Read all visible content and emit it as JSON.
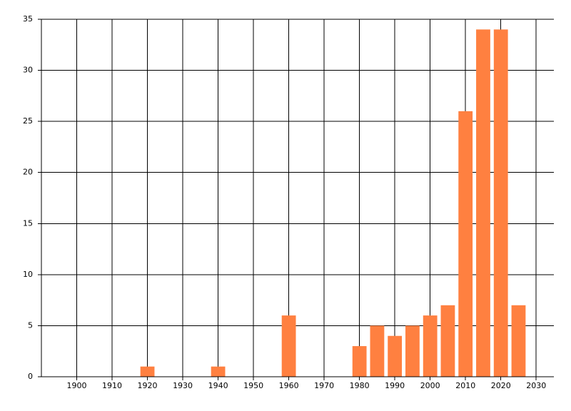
{
  "chart_data": {
    "type": "bar",
    "x": [
      1920,
      1940,
      1960,
      1980,
      1985,
      1990,
      1995,
      2000,
      2005,
      2010,
      2015,
      2020,
      2025
    ],
    "values": [
      1,
      1,
      6,
      3,
      5,
      4,
      5,
      6,
      7,
      26,
      34,
      34,
      7
    ],
    "color": "#ff8040",
    "xlim": [
      1890,
      2035
    ],
    "xticks": [
      1900,
      1910,
      1920,
      1930,
      1940,
      1950,
      1960,
      1970,
      1980,
      1990,
      2000,
      2010,
      2020,
      2030
    ],
    "ylim": [
      0,
      35
    ],
    "yticks": [
      0,
      5,
      10,
      15,
      20,
      25,
      30,
      35
    ],
    "grid": true
  }
}
